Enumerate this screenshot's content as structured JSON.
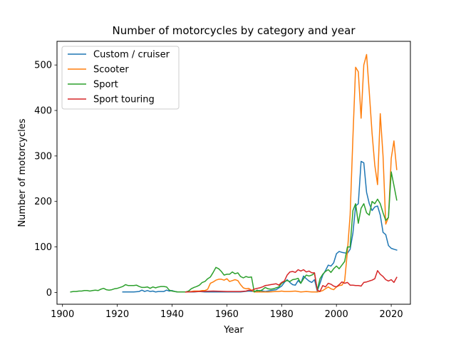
{
  "chart_data": {
    "type": "line",
    "title": "Number of motorcycles by category and year",
    "xlabel": "Year",
    "ylabel": "Number of motorcycles",
    "xlim": [
      1898,
      2027
    ],
    "ylim": [
      -26,
      552
    ],
    "xticks": [
      1900,
      1920,
      1940,
      1960,
      1980,
      2000,
      2020
    ],
    "yticks": [
      0,
      100,
      200,
      300,
      400,
      500
    ],
    "grid": false,
    "legend_position": "top-left",
    "series": [
      {
        "name": "Custom / cruiser",
        "color": "#1f77b4",
        "points": [
          [
            1922,
            1
          ],
          [
            1924,
            1
          ],
          [
            1926,
            1
          ],
          [
            1928,
            2
          ],
          [
            1929,
            5
          ],
          [
            1930,
            2
          ],
          [
            1931,
            4
          ],
          [
            1932,
            2
          ],
          [
            1933,
            3
          ],
          [
            1934,
            1
          ],
          [
            1935,
            2
          ],
          [
            1936,
            2
          ],
          [
            1937,
            2
          ],
          [
            1938,
            5
          ],
          [
            1939,
            3
          ],
          [
            1940,
            4
          ],
          [
            1941,
            2
          ],
          [
            1942,
            1
          ],
          [
            1944,
            1
          ],
          [
            1946,
            1
          ],
          [
            1948,
            1
          ],
          [
            1950,
            2
          ],
          [
            1952,
            1
          ],
          [
            1955,
            1
          ],
          [
            1960,
            1
          ],
          [
            1965,
            1
          ],
          [
            1968,
            3
          ],
          [
            1970,
            2
          ],
          [
            1972,
            4
          ],
          [
            1974,
            2
          ],
          [
            1976,
            4
          ],
          [
            1978,
            6
          ],
          [
            1980,
            14
          ],
          [
            1981,
            22
          ],
          [
            1982,
            28
          ],
          [
            1983,
            22
          ],
          [
            1984,
            17
          ],
          [
            1985,
            16
          ],
          [
            1986,
            26
          ],
          [
            1987,
            20
          ],
          [
            1988,
            36
          ],
          [
            1989,
            30
          ],
          [
            1990,
            25
          ],
          [
            1991,
            22
          ],
          [
            1992,
            28
          ],
          [
            1993,
            3
          ],
          [
            1994,
            20
          ],
          [
            1995,
            38
          ],
          [
            1996,
            48
          ],
          [
            1997,
            60
          ],
          [
            1998,
            58
          ],
          [
            1999,
            65
          ],
          [
            2000,
            85
          ],
          [
            2001,
            90
          ],
          [
            2002,
            88
          ],
          [
            2003,
            87
          ],
          [
            2004,
            86
          ],
          [
            2005,
            95
          ],
          [
            2006,
            130
          ],
          [
            2007,
            190
          ],
          [
            2008,
            195
          ],
          [
            2009,
            288
          ],
          [
            2010,
            285
          ],
          [
            2011,
            220
          ],
          [
            2012,
            195
          ],
          [
            2013,
            180
          ],
          [
            2014,
            188
          ],
          [
            2015,
            190
          ],
          [
            2016,
            170
          ],
          [
            2017,
            132
          ],
          [
            2018,
            127
          ],
          [
            2019,
            103
          ],
          [
            2020,
            97
          ],
          [
            2021,
            95
          ],
          [
            2022,
            93
          ]
        ]
      },
      {
        "name": "Scooter",
        "color": "#ff7f0e",
        "points": [
          [
            1945,
            1
          ],
          [
            1947,
            2
          ],
          [
            1948,
            3
          ],
          [
            1950,
            3
          ],
          [
            1951,
            4
          ],
          [
            1952,
            4
          ],
          [
            1953,
            7
          ],
          [
            1954,
            20
          ],
          [
            1955,
            23
          ],
          [
            1956,
            27
          ],
          [
            1957,
            29
          ],
          [
            1958,
            29
          ],
          [
            1959,
            27
          ],
          [
            1960,
            30
          ],
          [
            1961,
            24
          ],
          [
            1962,
            26
          ],
          [
            1963,
            28
          ],
          [
            1964,
            26
          ],
          [
            1965,
            17
          ],
          [
            1966,
            10
          ],
          [
            1967,
            8
          ],
          [
            1968,
            9
          ],
          [
            1969,
            5
          ],
          [
            1970,
            1
          ],
          [
            1972,
            1
          ],
          [
            1975,
            1
          ],
          [
            1978,
            2
          ],
          [
            1979,
            2
          ],
          [
            1980,
            3
          ],
          [
            1981,
            2
          ],
          [
            1983,
            2
          ],
          [
            1985,
            3
          ],
          [
            1987,
            1
          ],
          [
            1989,
            2
          ],
          [
            1991,
            1
          ],
          [
            1993,
            1
          ],
          [
            1994,
            2
          ],
          [
            1995,
            4
          ],
          [
            1996,
            8
          ],
          [
            1997,
            12
          ],
          [
            1998,
            8
          ],
          [
            1999,
            6
          ],
          [
            2000,
            12
          ],
          [
            2001,
            15
          ],
          [
            2002,
            16
          ],
          [
            2003,
            25
          ],
          [
            2004,
            90
          ],
          [
            2005,
            170
          ],
          [
            2006,
            340
          ],
          [
            2007,
            495
          ],
          [
            2008,
            485
          ],
          [
            2009,
            383
          ],
          [
            2010,
            500
          ],
          [
            2011,
            523
          ],
          [
            2012,
            440
          ],
          [
            2013,
            350
          ],
          [
            2014,
            280
          ],
          [
            2015,
            237
          ],
          [
            2016,
            393
          ],
          [
            2017,
            300
          ],
          [
            2018,
            150
          ],
          [
            2019,
            165
          ],
          [
            2020,
            295
          ],
          [
            2021,
            333
          ],
          [
            2022,
            270
          ]
        ]
      },
      {
        "name": "Sport",
        "color": "#2ca02c",
        "points": [
          [
            1903,
            1
          ],
          [
            1904,
            2
          ],
          [
            1905,
            2
          ],
          [
            1906,
            3
          ],
          [
            1907,
            3
          ],
          [
            1908,
            4
          ],
          [
            1909,
            4
          ],
          [
            1910,
            3
          ],
          [
            1911,
            4
          ],
          [
            1912,
            5
          ],
          [
            1913,
            4
          ],
          [
            1914,
            7
          ],
          [
            1915,
            9
          ],
          [
            1916,
            6
          ],
          [
            1917,
            5
          ],
          [
            1918,
            6
          ],
          [
            1919,
            8
          ],
          [
            1920,
            9
          ],
          [
            1921,
            11
          ],
          [
            1922,
            13
          ],
          [
            1923,
            17
          ],
          [
            1924,
            15
          ],
          [
            1925,
            15
          ],
          [
            1926,
            15
          ],
          [
            1927,
            16
          ],
          [
            1928,
            13
          ],
          [
            1929,
            11
          ],
          [
            1930,
            11
          ],
          [
            1931,
            12
          ],
          [
            1932,
            9
          ],
          [
            1933,
            12
          ],
          [
            1934,
            10
          ],
          [
            1935,
            12
          ],
          [
            1936,
            13
          ],
          [
            1937,
            13
          ],
          [
            1938,
            12
          ],
          [
            1939,
            5
          ],
          [
            1940,
            3
          ],
          [
            1941,
            2
          ],
          [
            1942,
            1
          ],
          [
            1943,
            1
          ],
          [
            1944,
            1
          ],
          [
            1945,
            1
          ],
          [
            1946,
            3
          ],
          [
            1947,
            8
          ],
          [
            1948,
            11
          ],
          [
            1949,
            13
          ],
          [
            1950,
            16
          ],
          [
            1951,
            22
          ],
          [
            1952,
            24
          ],
          [
            1953,
            30
          ],
          [
            1954,
            34
          ],
          [
            1955,
            44
          ],
          [
            1956,
            55
          ],
          [
            1957,
            52
          ],
          [
            1958,
            46
          ],
          [
            1959,
            38
          ],
          [
            1960,
            40
          ],
          [
            1961,
            40
          ],
          [
            1962,
            45
          ],
          [
            1963,
            41
          ],
          [
            1964,
            43
          ],
          [
            1965,
            35
          ],
          [
            1966,
            32
          ],
          [
            1967,
            35
          ],
          [
            1968,
            33
          ],
          [
            1969,
            34
          ],
          [
            1970,
            1
          ],
          [
            1971,
            5
          ],
          [
            1972,
            3
          ],
          [
            1973,
            6
          ],
          [
            1974,
            11
          ],
          [
            1975,
            8
          ],
          [
            1976,
            7
          ],
          [
            1977,
            8
          ],
          [
            1978,
            10
          ],
          [
            1979,
            12
          ],
          [
            1980,
            20
          ],
          [
            1981,
            24
          ],
          [
            1982,
            26
          ],
          [
            1983,
            24
          ],
          [
            1984,
            28
          ],
          [
            1985,
            29
          ],
          [
            1986,
            31
          ],
          [
            1987,
            20
          ],
          [
            1988,
            30
          ],
          [
            1989,
            38
          ],
          [
            1990,
            36
          ],
          [
            1991,
            38
          ],
          [
            1992,
            42
          ],
          [
            1993,
            5
          ],
          [
            1994,
            30
          ],
          [
            1995,
            40
          ],
          [
            1996,
            46
          ],
          [
            1997,
            50
          ],
          [
            1998,
            44
          ],
          [
            1999,
            52
          ],
          [
            2000,
            58
          ],
          [
            2001,
            52
          ],
          [
            2002,
            60
          ],
          [
            2003,
            68
          ],
          [
            2004,
            100
          ],
          [
            2005,
            100
          ],
          [
            2006,
            180
          ],
          [
            2007,
            195
          ],
          [
            2008,
            152
          ],
          [
            2009,
            185
          ],
          [
            2010,
            195
          ],
          [
            2011,
            175
          ],
          [
            2012,
            170
          ],
          [
            2013,
            200
          ],
          [
            2014,
            195
          ],
          [
            2015,
            205
          ],
          [
            2016,
            195
          ],
          [
            2017,
            175
          ],
          [
            2018,
            158
          ],
          [
            2019,
            165
          ],
          [
            2020,
            265
          ],
          [
            2021,
            235
          ],
          [
            2022,
            203
          ]
        ]
      },
      {
        "name": "Sport touring",
        "color": "#d62728",
        "points": [
          [
            1945,
            1
          ],
          [
            1950,
            2
          ],
          [
            1955,
            3
          ],
          [
            1960,
            2
          ],
          [
            1965,
            2
          ],
          [
            1967,
            3
          ],
          [
            1968,
            5
          ],
          [
            1969,
            4
          ],
          [
            1970,
            7
          ],
          [
            1971,
            9
          ],
          [
            1972,
            10
          ],
          [
            1973,
            12
          ],
          [
            1974,
            15
          ],
          [
            1975,
            16
          ],
          [
            1976,
            17
          ],
          [
            1977,
            18
          ],
          [
            1978,
            19
          ],
          [
            1979,
            16
          ],
          [
            1980,
            22
          ],
          [
            1981,
            25
          ],
          [
            1982,
            38
          ],
          [
            1983,
            45
          ],
          [
            1984,
            46
          ],
          [
            1985,
            44
          ],
          [
            1986,
            50
          ],
          [
            1987,
            47
          ],
          [
            1988,
            50
          ],
          [
            1989,
            45
          ],
          [
            1990,
            47
          ],
          [
            1991,
            43
          ],
          [
            1992,
            43
          ],
          [
            1993,
            5
          ],
          [
            1994,
            2
          ],
          [
            1995,
            15
          ],
          [
            1996,
            12
          ],
          [
            1997,
            20
          ],
          [
            1998,
            18
          ],
          [
            1999,
            14
          ],
          [
            2000,
            12
          ],
          [
            2001,
            17
          ],
          [
            2002,
            23
          ],
          [
            2003,
            20
          ],
          [
            2004,
            22
          ],
          [
            2005,
            16
          ],
          [
            2006,
            16
          ],
          [
            2007,
            15
          ],
          [
            2008,
            15
          ],
          [
            2009,
            14
          ],
          [
            2010,
            22
          ],
          [
            2011,
            23
          ],
          [
            2012,
            25
          ],
          [
            2013,
            27
          ],
          [
            2014,
            30
          ],
          [
            2015,
            48
          ],
          [
            2016,
            40
          ],
          [
            2017,
            35
          ],
          [
            2018,
            28
          ],
          [
            2019,
            25
          ],
          [
            2020,
            28
          ],
          [
            2021,
            22
          ],
          [
            2022,
            33
          ]
        ]
      }
    ]
  }
}
